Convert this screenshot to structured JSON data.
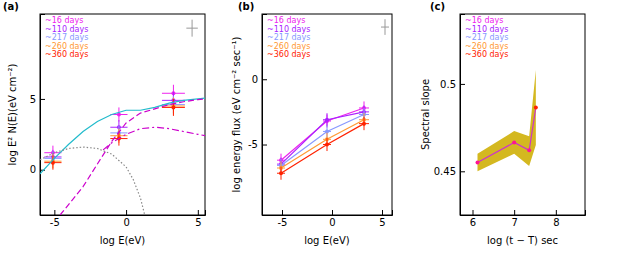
{
  "chart_data": [
    {
      "type": "line",
      "panel_label": "(a)",
      "x_label": "log E(eV)",
      "y_label": "log E² N(E)(eV cm⁻²)",
      "xlim": [
        -6,
        5.5
      ],
      "ylim": [
        -3.2,
        11
      ],
      "xticks": [
        -5,
        0,
        5
      ],
      "yticks": [
        0,
        5
      ],
      "legend": "top-left",
      "series": [
        {
          "name": "~16 days",
          "color": "#ee22ee",
          "type": "scatter",
          "marker": "circle",
          "x": [
            -5.1,
            -0.5,
            3.3
          ],
          "values": [
            1.2,
            3.9,
            5.4
          ],
          "xerr": [
            0.6,
            0.6,
            0.8
          ],
          "yerr": [
            0.5,
            0.5,
            0.6
          ]
        },
        {
          "name": "~110 days",
          "color": "#aa22ff",
          "type": "scatter",
          "marker": "circle",
          "x": [
            -5.1,
            -0.5,
            3.3
          ],
          "values": [
            0.9,
            3.0,
            4.9
          ],
          "xerr": [
            0.6,
            0.6,
            0.8
          ],
          "yerr": [
            0.5,
            0.5,
            0.6
          ]
        },
        {
          "name": "~217 days",
          "color": "#8899ff",
          "type": "scatter",
          "marker": "circle",
          "x": [
            -5.1,
            -0.5,
            3.3
          ],
          "values": [
            0.8,
            2.6,
            4.6
          ],
          "xerr": [
            0.6,
            0.6,
            0.8
          ],
          "yerr": [
            0.5,
            0.5,
            0.6
          ]
        },
        {
          "name": "~260 days",
          "color": "#ff9933",
          "type": "scatter",
          "marker": "circle",
          "x": [
            -5.1,
            -0.5,
            3.3
          ],
          "values": [
            0.6,
            2.4,
            4.5
          ],
          "xerr": [
            0.6,
            0.6,
            0.8
          ],
          "yerr": [
            0.5,
            0.5,
            0.6
          ]
        },
        {
          "name": "~360 days",
          "color": "#ff2200",
          "type": "scatter",
          "marker": "circle",
          "x": [
            -5.1,
            -0.5,
            3.3
          ],
          "values": [
            0.5,
            2.2,
            4.4
          ],
          "xerr": [
            0.6,
            0.6,
            0.8
          ],
          "yerr": [
            0.5,
            0.5,
            0.6
          ]
        },
        {
          "type": "line",
          "color": "#22bbcc",
          "line_style": "solid",
          "x": [
            -6,
            -5,
            -4,
            -3,
            -2,
            -1,
            0,
            1,
            2,
            3,
            4,
            5,
            5.5
          ],
          "values": [
            -0.3,
            0.8,
            1.8,
            2.7,
            3.4,
            3.9,
            4.2,
            4.2,
            4.4,
            4.7,
            4.9,
            5.0,
            5.05
          ]
        },
        {
          "type": "line",
          "color": "#cc00cc",
          "line_style": "dashed",
          "x": [
            -4.6,
            -3,
            -2,
            -1,
            0,
            1,
            2,
            3,
            4,
            5,
            5.5
          ],
          "values": [
            -3.2,
            -1.2,
            0.4,
            2.0,
            3.3,
            4.0,
            4.3,
            4.6,
            4.8,
            4.95,
            5.0
          ]
        },
        {
          "type": "line",
          "color": "#cc00cc",
          "line_style": "dashdot",
          "x": [
            -1.6,
            -1,
            0,
            1,
            2,
            3,
            4,
            5,
            5.5
          ],
          "values": [
            1.4,
            1.9,
            2.5,
            2.9,
            3.0,
            2.9,
            2.7,
            2.5,
            2.4
          ]
        },
        {
          "type": "line",
          "color": "#888888",
          "line_style": "dotted",
          "x": [
            -6,
            -5,
            -4,
            -3,
            -2,
            -1,
            0,
            0.5,
            1,
            1.3
          ],
          "values": [
            0.7,
            1.2,
            1.5,
            1.6,
            1.5,
            1.1,
            0.2,
            -0.7,
            -2.0,
            -3.2
          ]
        },
        {
          "type": "errorbar",
          "color": "#999999",
          "x": [
            4.6
          ],
          "values": [
            10
          ],
          "xerr": [
            0.4
          ],
          "yerr": [
            0.6
          ]
        }
      ]
    },
    {
      "type": "line",
      "panel_label": "(b)",
      "x_label": "log E(eV)",
      "y_label": "log energy flux (eV cm⁻² sec⁻¹)",
      "xlim": [
        -7,
        6
      ],
      "ylim": [
        -10.4,
        5
      ],
      "xticks": [
        -5,
        0,
        5
      ],
      "yticks": [
        -5,
        0
      ],
      "legend": "top-left",
      "series": [
        {
          "name": "~16 days",
          "color": "#ee22ee",
          "type": "line",
          "marker": "circle",
          "x": [
            -5.1,
            -0.5,
            3.2
          ],
          "values": [
            -6.2,
            -3.2,
            -2.2
          ],
          "xerr": [
            0.4,
            0.4,
            0.5
          ],
          "yerr": [
            0.5,
            0.5,
            0.5
          ]
        },
        {
          "name": "~110 days",
          "color": "#aa22ff",
          "type": "line",
          "marker": "circle",
          "x": [
            -5.1,
            -0.5,
            3.2
          ],
          "values": [
            -6.5,
            -3.1,
            -2.5
          ],
          "xerr": [
            0.4,
            0.4,
            0.5
          ],
          "yerr": [
            0.5,
            0.5,
            0.5
          ]
        },
        {
          "name": "~217 days",
          "color": "#8899ff",
          "type": "line",
          "marker": "circle",
          "x": [
            -5.1,
            -0.5,
            3.2
          ],
          "values": [
            -6.6,
            -4.0,
            -2.7
          ],
          "xerr": [
            0.4,
            0.4,
            0.5
          ],
          "yerr": [
            0.5,
            0.5,
            0.5
          ]
        },
        {
          "name": "~260 days",
          "color": "#ff9933",
          "type": "line",
          "marker": "circle",
          "x": [
            -5.1,
            -0.5,
            3.2
          ],
          "values": [
            -6.8,
            -4.6,
            -3.1
          ],
          "xerr": [
            0.4,
            0.4,
            0.5
          ],
          "yerr": [
            0.5,
            0.5,
            0.5
          ]
        },
        {
          "name": "~360 days",
          "color": "#ff2200",
          "type": "line",
          "marker": "circle",
          "x": [
            -5.1,
            -0.5,
            3.2
          ],
          "values": [
            -7.2,
            -5.0,
            -3.4
          ],
          "xerr": [
            0.4,
            0.4,
            0.5
          ],
          "yerr": [
            0.5,
            0.5,
            0.5
          ]
        },
        {
          "type": "errorbar",
          "color": "#999999",
          "x": [
            5.3
          ],
          "values": [
            4.0
          ],
          "xerr": [
            0.4
          ],
          "yerr": [
            0.6
          ]
        }
      ]
    },
    {
      "type": "line",
      "panel_label": "(c)",
      "x_label": "log (t − T) sec",
      "y_label": "Spectral slope",
      "xlim": [
        5.7,
        8.7
      ],
      "ylim": [
        0.425,
        0.54
      ],
      "xticks": [
        6,
        7,
        8
      ],
      "yticks": [
        0.45,
        0.5
      ],
      "legend": "top-left",
      "legend_items": [
        {
          "name": "~16 days",
          "color": "#ee22ee"
        },
        {
          "name": "~110 days",
          "color": "#aa22ff"
        },
        {
          "name": "~217 days",
          "color": "#8899ff"
        },
        {
          "name": "~260 days",
          "color": "#ff9933"
        },
        {
          "name": "~360 days",
          "color": "#ff2200"
        }
      ],
      "series": [
        {
          "type": "area",
          "color": "#d4b820",
          "x": [
            6.12,
            7.0,
            7.36,
            7.52
          ],
          "low": [
            0.45,
            0.46,
            0.453,
            0.465
          ],
          "high": [
            0.46,
            0.473,
            0.47,
            0.508
          ]
        },
        {
          "type": "line",
          "color": "#cc33cc",
          "marker": "circle",
          "colors": [
            "#ff1493",
            "#ff1493",
            "#ff1493",
            "#ff2200"
          ],
          "x": [
            6.12,
            7.0,
            7.36,
            7.52
          ],
          "values": [
            0.455,
            0.4665,
            0.462,
            0.4865
          ]
        }
      ]
    }
  ]
}
